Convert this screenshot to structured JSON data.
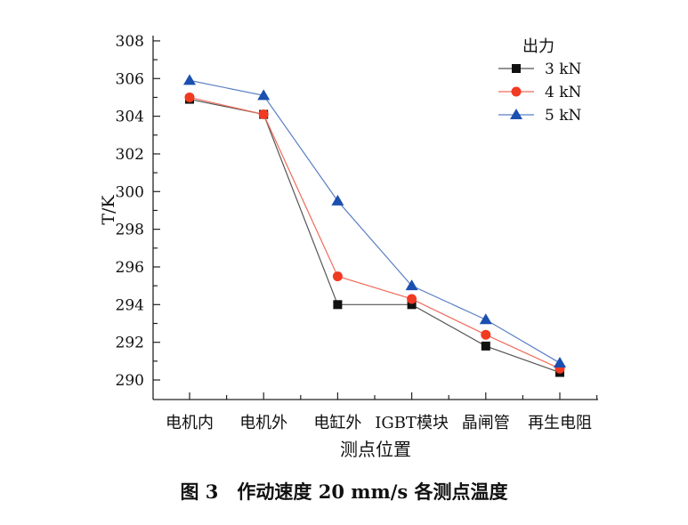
{
  "chart_data": {
    "type": "line",
    "xlabel": "测点位置",
    "ylabel": "T/K",
    "categories": [
      "电机内",
      "电机外",
      "电缸外",
      "IGBT模块",
      "晶闸管",
      "再生电阻"
    ],
    "ylim": [
      289,
      308
    ],
    "yticks": [
      290,
      292,
      294,
      296,
      298,
      300,
      302,
      304,
      306,
      308
    ],
    "grid": false,
    "legend": {
      "title": "出力",
      "placement": "top-right"
    },
    "series": [
      {
        "name": "3 kN",
        "marker": "square",
        "color": "#111111",
        "line_color": "#555555",
        "values": [
          304.9,
          304.1,
          294.0,
          294.0,
          291.8,
          290.4
        ]
      },
      {
        "name": "4 kN",
        "marker": "circle",
        "color": "#f03a22",
        "line_color": "#f06a5a",
        "values": [
          305.0,
          304.1,
          295.5,
          294.3,
          292.4,
          290.6
        ]
      },
      {
        "name": "5 kN",
        "marker": "triangle",
        "color": "#1b4fb0",
        "line_color": "#5a7fc4",
        "values": [
          305.9,
          305.1,
          299.5,
          295.0,
          293.2,
          290.9
        ]
      }
    ]
  },
  "caption": "图 3　作动速度 20 mm/s 各测点温度"
}
